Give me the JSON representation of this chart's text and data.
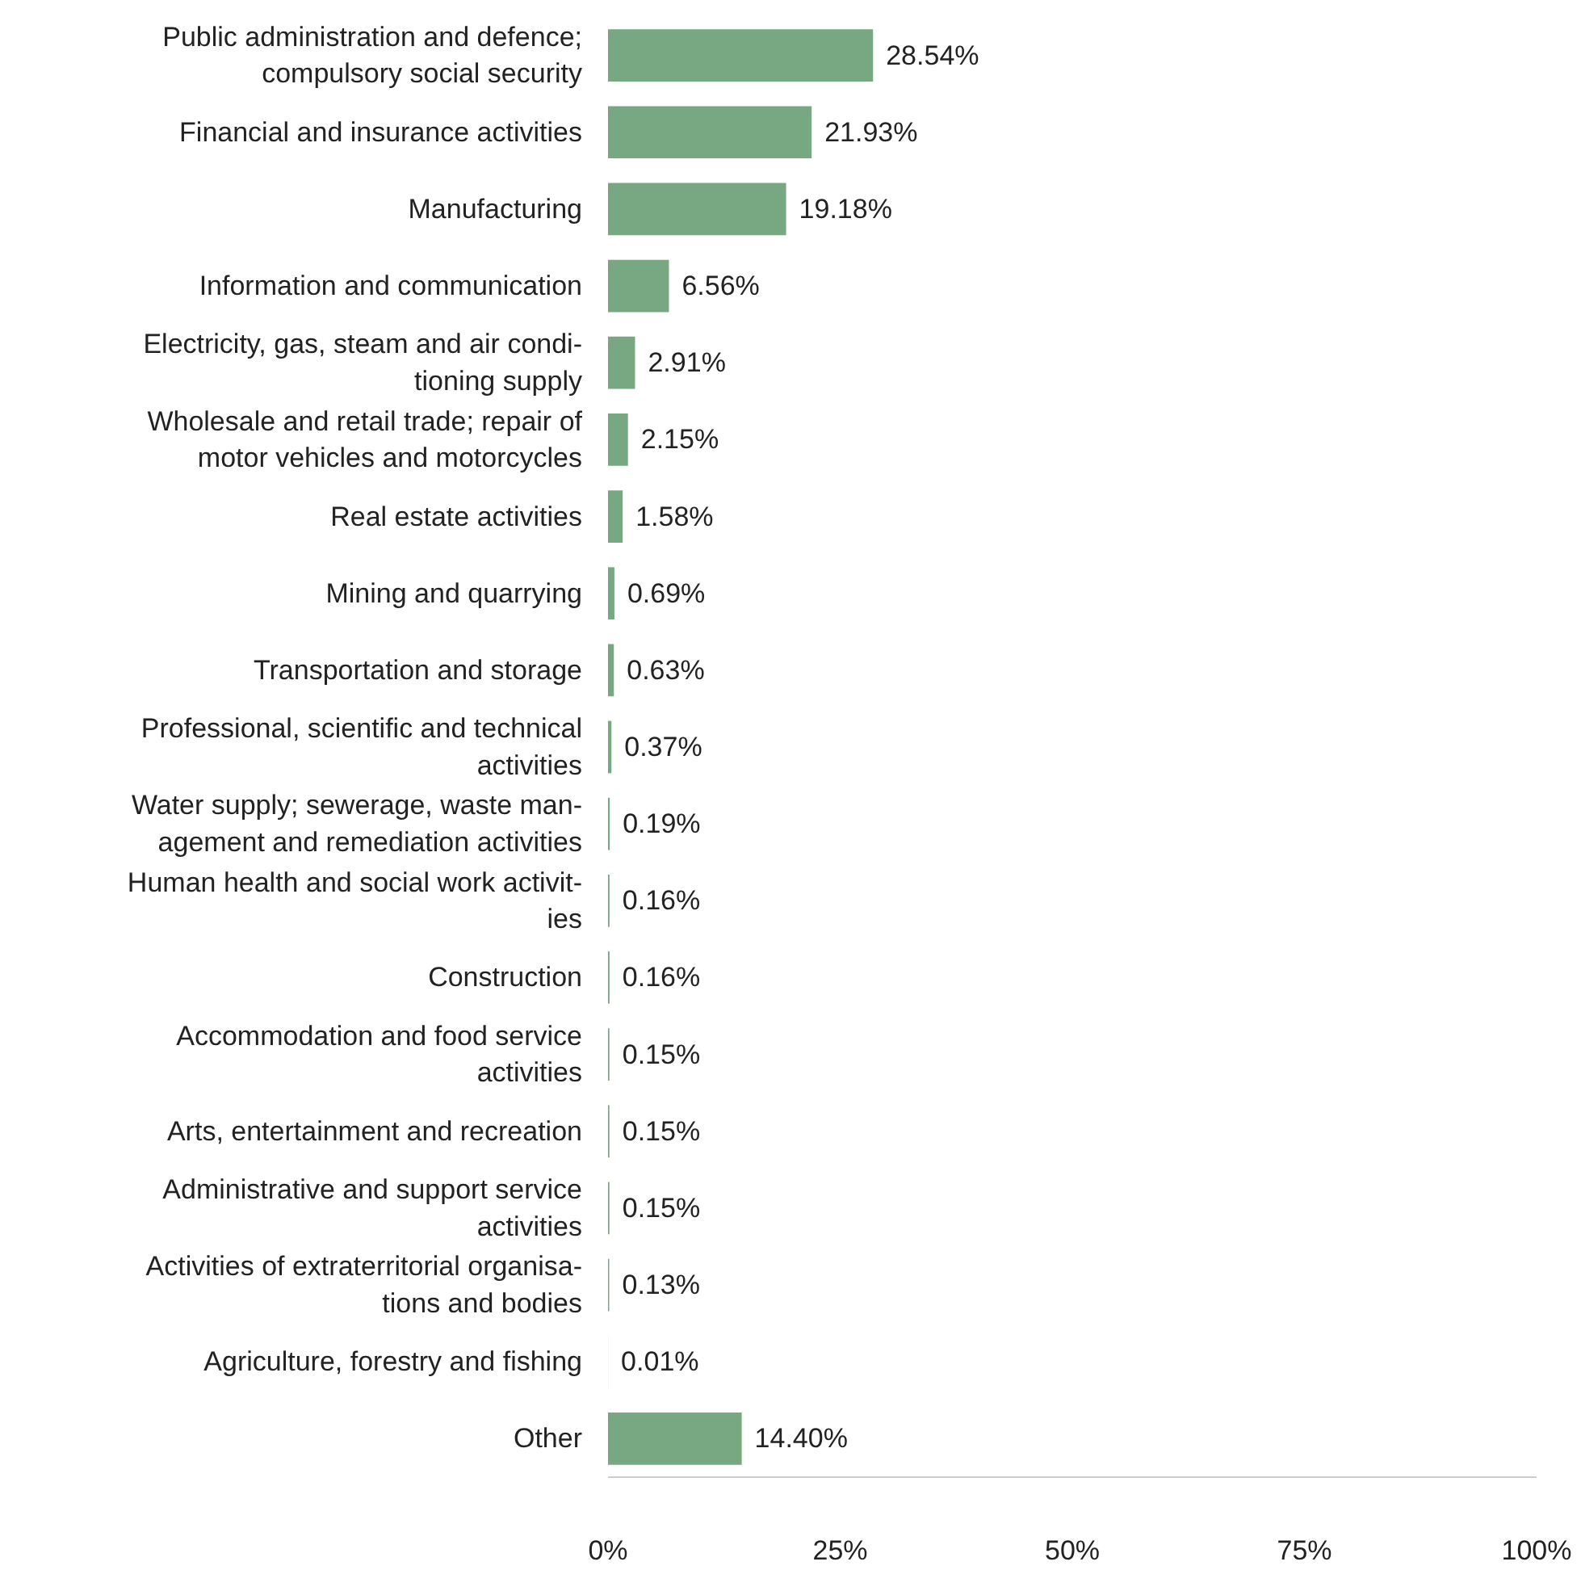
{
  "chart_data": {
    "type": "bar",
    "orientation": "horizontal",
    "categories": [
      "Public administration and defence;\ncompulsory social security",
      "Financial and insurance activities",
      "Manufacturing",
      "Information and communication",
      "Electricity, gas, steam and air condi-\ntioning supply",
      "Wholesale and retail trade; repair of\nmotor vehicles and motorcycles",
      "Real estate activities",
      "Mining and quarrying",
      "Transportation and storage",
      "Professional, scientific and technical\nactivities",
      "Water supply; sewerage, waste man-\nagement and remediation activities",
      "Human health and social work activit-\nies",
      "Construction",
      "Accommodation and food service\nactivities",
      "Arts, entertainment and recreation",
      "Administrative and support service\nactivities",
      "Activities of extraterritorial organisa-\ntions and bodies",
      "Agriculture, forestry and fishing",
      "Other"
    ],
    "values": [
      28.54,
      21.93,
      19.18,
      6.56,
      2.91,
      2.15,
      1.58,
      0.69,
      0.63,
      0.37,
      0.19,
      0.16,
      0.16,
      0.15,
      0.15,
      0.15,
      0.13,
      0.01,
      14.4
    ],
    "value_labels": [
      "28.54%",
      "21.93%",
      "19.18%",
      "6.56%",
      "2.91%",
      "2.15%",
      "1.58%",
      "0.69%",
      "0.63%",
      "0.37%",
      "0.19%",
      "0.16%",
      "0.16%",
      "0.15%",
      "0.15%",
      "0.15%",
      "0.13%",
      "0.01%",
      "14.40%"
    ],
    "color": "#78a882",
    "xlim": [
      0,
      100
    ],
    "xticks": [
      {
        "value": 0,
        "label": "0%"
      },
      {
        "value": 25,
        "label": "25%"
      },
      {
        "value": 50,
        "label": "50%"
      },
      {
        "value": 75,
        "label": "75%"
      },
      {
        "value": 100,
        "label": "100%"
      }
    ],
    "grid": false
  }
}
